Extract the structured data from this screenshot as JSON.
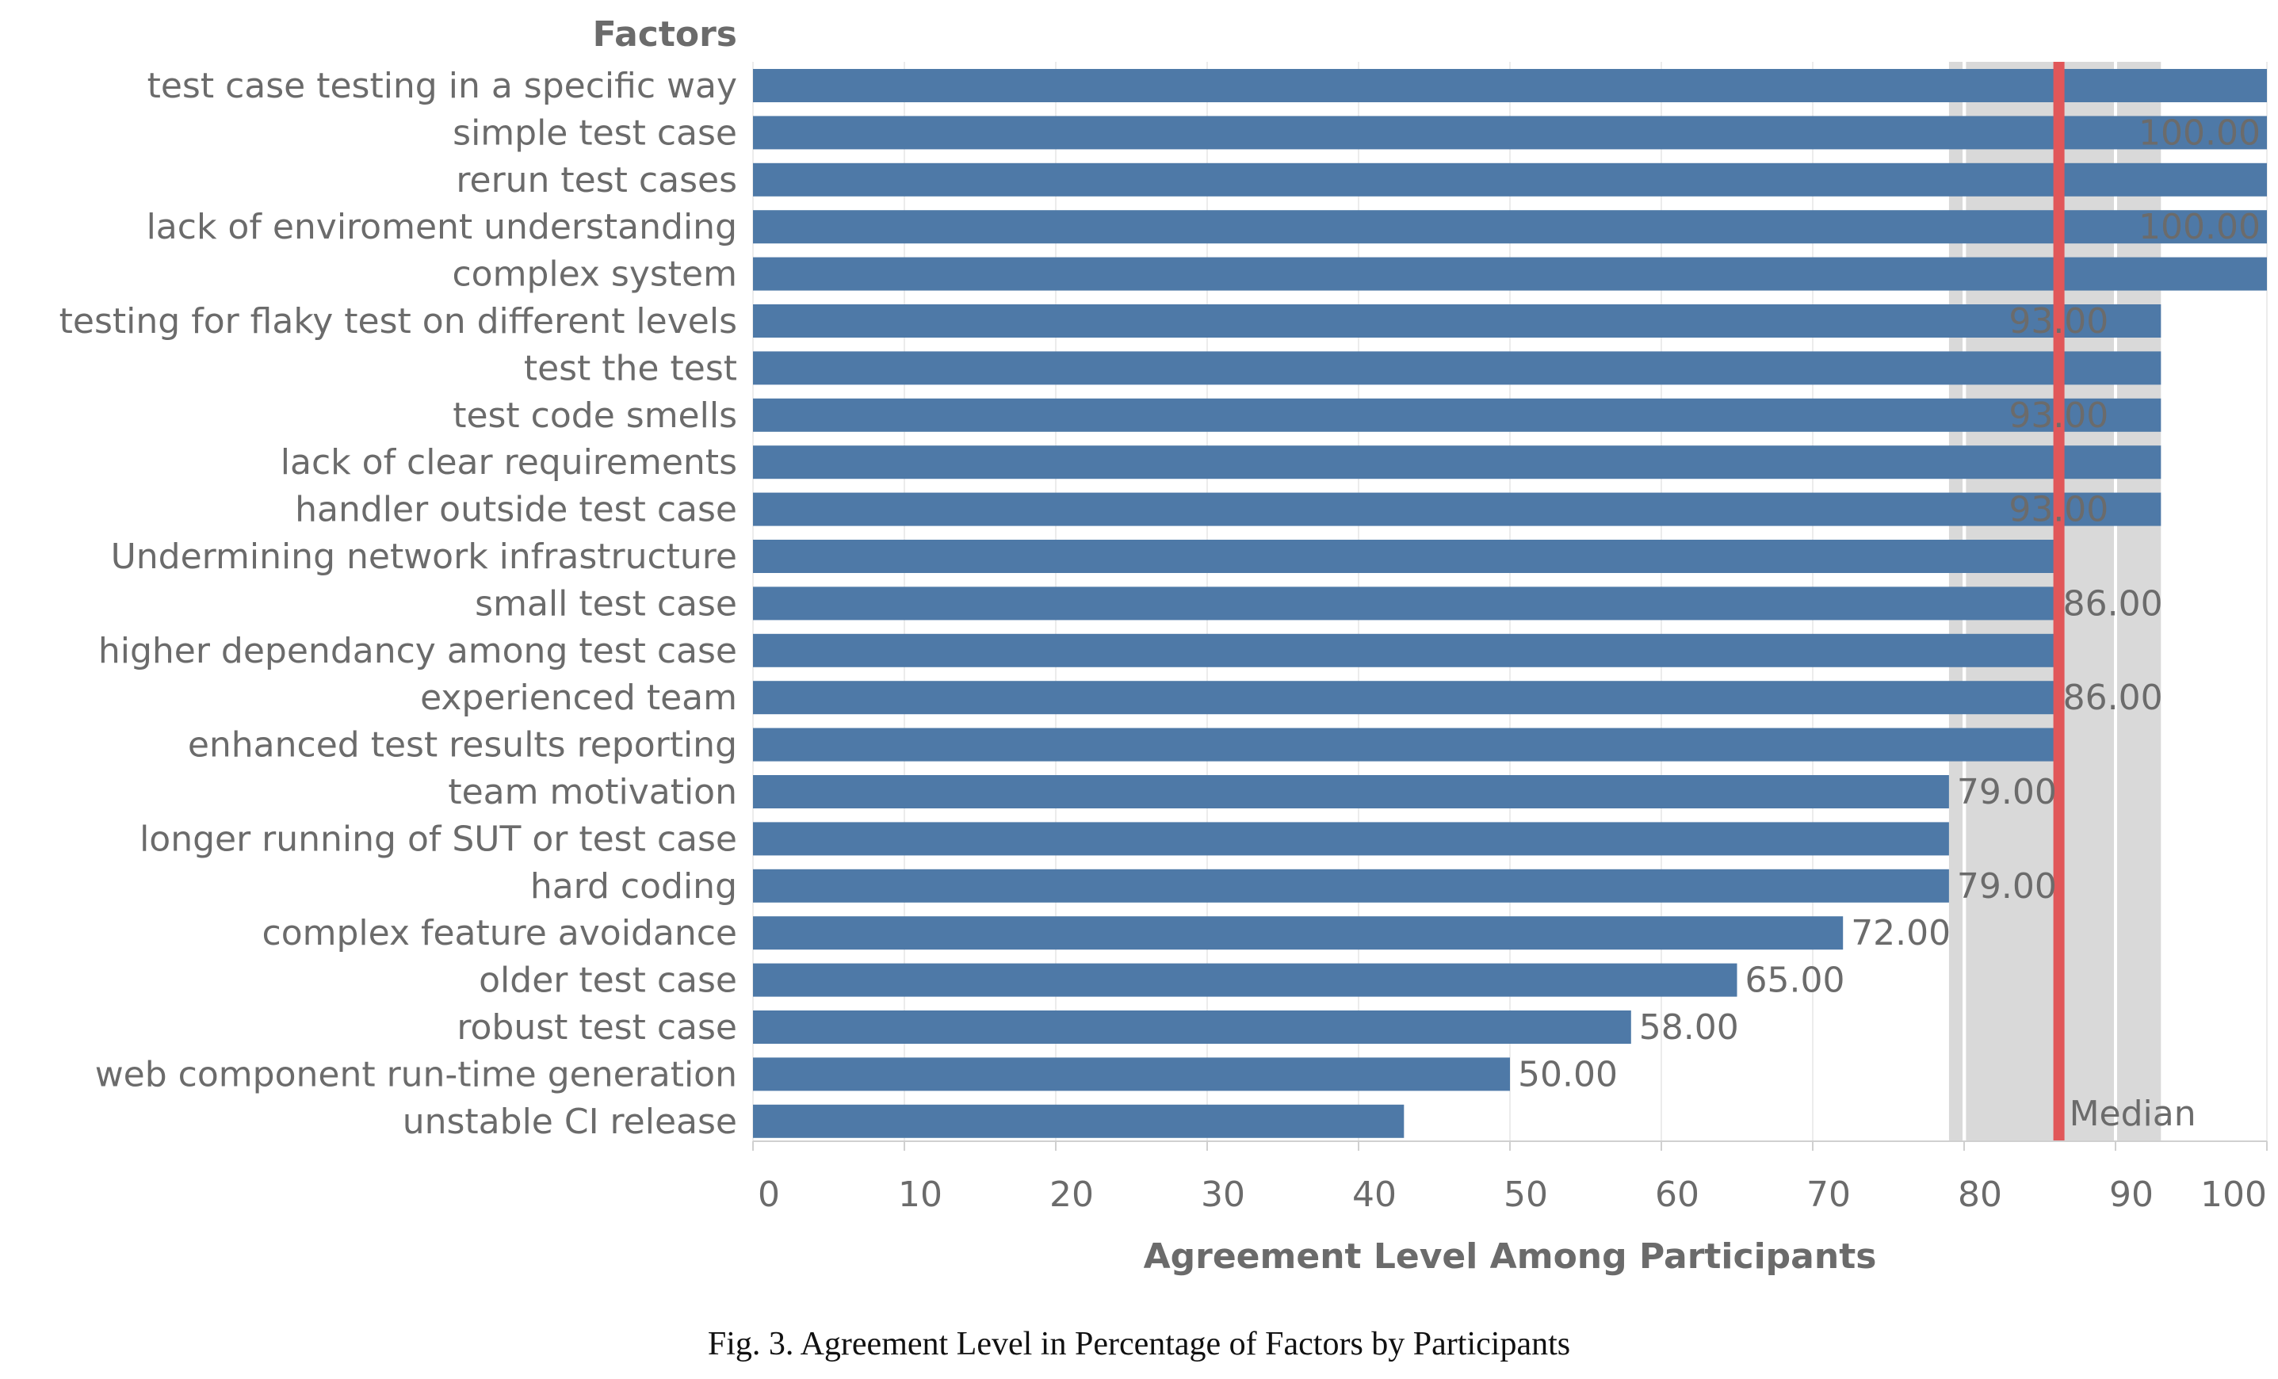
{
  "chart_data": {
    "type": "bar",
    "orientation": "horizontal",
    "categories_title": "Factors",
    "xlabel": "Agreement Level Among Participants",
    "xlim": [
      0,
      100
    ],
    "xticks": [
      "0",
      "10",
      "20",
      "30",
      "40",
      "50",
      "60",
      "70",
      "80",
      "90",
      "100"
    ],
    "grid": true,
    "bar_color": "#4e79a7",
    "categories": [
      "test case testing in a specific way",
      "simple test case",
      "rerun test cases",
      "lack of enviroment understanding",
      "complex system",
      "testing for flaky test on different levels",
      "test the test",
      "test code smells",
      "lack of clear requirements",
      "handler outside test case",
      "Undermining network infrastructure",
      "small test case",
      "higher dependancy among test case",
      "experienced team",
      "enhanced test results reporting",
      "team motivation",
      "longer running of SUT or test case",
      "hard coding",
      "complex feature avoidance",
      "older test case",
      "robust test case",
      "web component run-time generation",
      "unstable CI release"
    ],
    "values": [
      100,
      100,
      100,
      100,
      100,
      93,
      93,
      93,
      93,
      93,
      86,
      86,
      86,
      86,
      86,
      79,
      79,
      79,
      72,
      65,
      58,
      50,
      43
    ],
    "data_labels": [
      "",
      "100.00",
      "",
      "100.00",
      "",
      "93.00",
      "",
      "93.00",
      "",
      "93.00",
      "",
      "86.00",
      "",
      "86.00",
      "",
      "79.00",
      "",
      "79.00",
      "72.00",
      "65.00",
      "58.00",
      "50.00",
      ""
    ],
    "reference_band": {
      "from": 79,
      "to": 93,
      "color": "#d9d9d9"
    },
    "median": {
      "value": 86,
      "label": "Median",
      "color": "#e15759"
    }
  },
  "caption": "Fig. 3.  Agreement Level in Percentage of Factors by Participants"
}
